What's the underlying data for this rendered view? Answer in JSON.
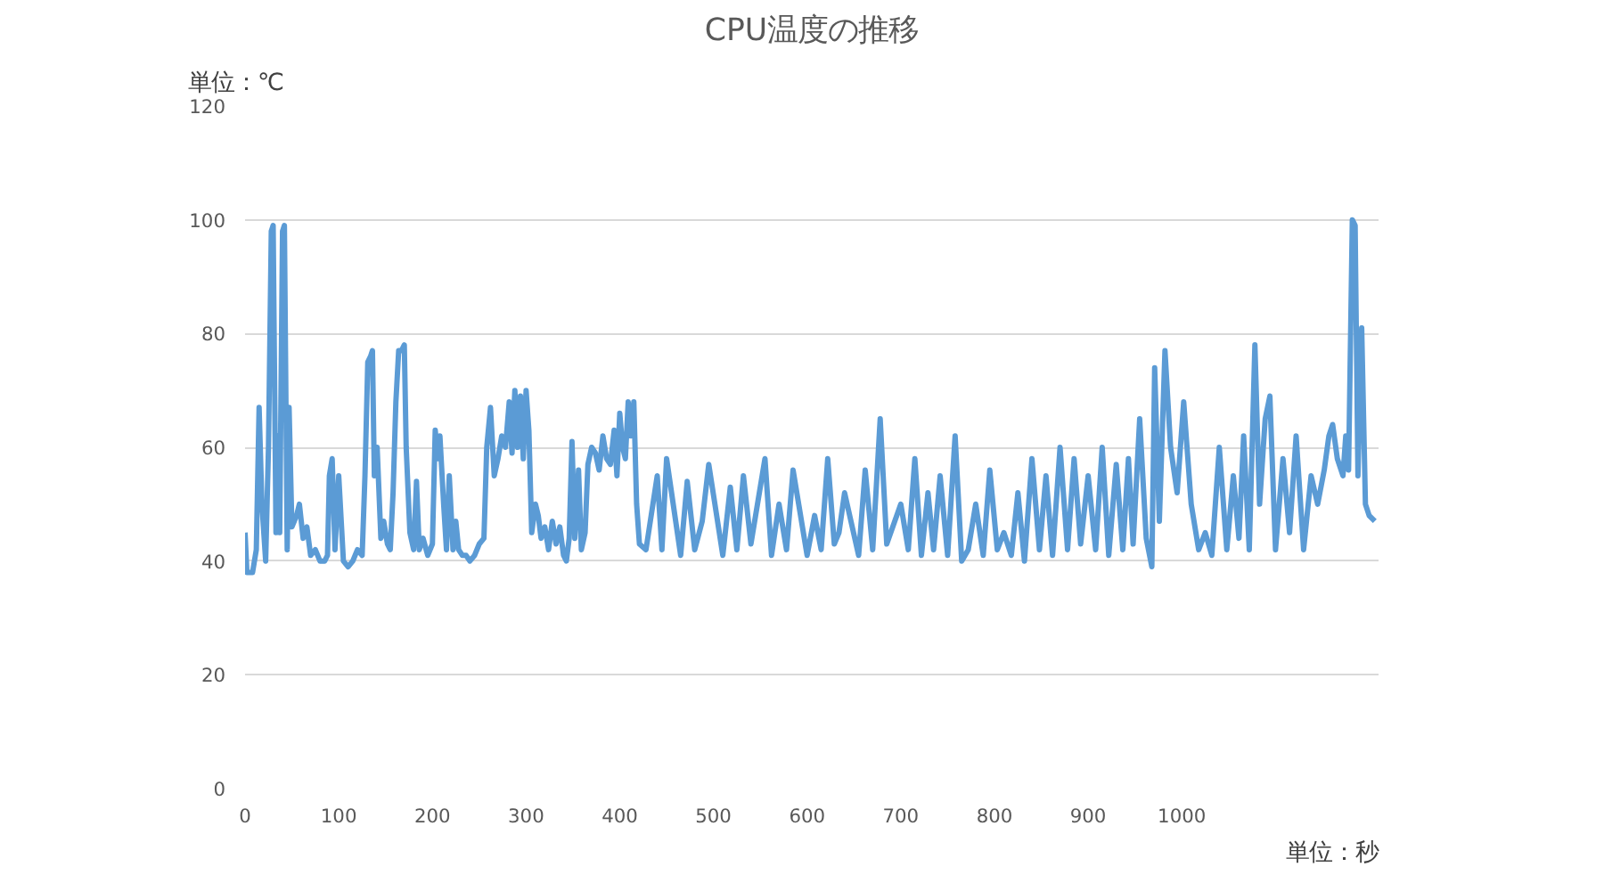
{
  "chart_data": {
    "type": "line",
    "title": "CPU温度の推移",
    "xlabel": "単位：秒",
    "ylabel": "単位：℃",
    "xlim": [
      0,
      1210
    ],
    "xticks": [
      0,
      100,
      200,
      300,
      400,
      500,
      600,
      700,
      800,
      900,
      1000
    ],
    "ylim": [
      0,
      120
    ],
    "yticks": [
      0,
      20,
      40,
      60,
      80,
      100,
      120
    ],
    "grid": "y",
    "line_style": "solid",
    "marker": "none",
    "series": [
      {
        "color": "#5b9bd5",
        "x": [
          0,
          2,
          8,
          12,
          15,
          18,
          22,
          25,
          28,
          30,
          33,
          35,
          37,
          40,
          42,
          45,
          47,
          50,
          55,
          58,
          62,
          66,
          70,
          75,
          80,
          85,
          88,
          90,
          93,
          96,
          100,
          105,
          110,
          115,
          120,
          125,
          128,
          131,
          134,
          136,
          138,
          141,
          145,
          148,
          152,
          155,
          158,
          161,
          164,
          167,
          170,
          172,
          176,
          180,
          183,
          186,
          190,
          195,
          200,
          203,
          206,
          208,
          212,
          215,
          218,
          222,
          225,
          228,
          232,
          236,
          240,
          245,
          250,
          255,
          258,
          262,
          266,
          270,
          274,
          278,
          282,
          285,
          288,
          291,
          294,
          297,
          300,
          303,
          306,
          310,
          313,
          316,
          320,
          324,
          328,
          332,
          336,
          340,
          343,
          346,
          349,
          352,
          356,
          359,
          363,
          366,
          370,
          374,
          378,
          382,
          386,
          390,
          394,
          397,
          400,
          403,
          406,
          409,
          412,
          415,
          418,
          421,
          428,
          440,
          445,
          450,
          465,
          472,
          480,
          488,
          495,
          510,
          518,
          525,
          532,
          540,
          555,
          562,
          570,
          578,
          585,
          600,
          608,
          615,
          622,
          629,
          634,
          640,
          655,
          662,
          670,
          678,
          685,
          700,
          708,
          715,
          722,
          729,
          735,
          742,
          750,
          758,
          765,
          772,
          780,
          788,
          795,
          803,
          810,
          818,
          825,
          832,
          840,
          848,
          855,
          862,
          870,
          878,
          885,
          892,
          900,
          908,
          915,
          922,
          930,
          937,
          943,
          948,
          955,
          962,
          968,
          971,
          976,
          982,
          988,
          995,
          1002,
          1010,
          1018,
          1025,
          1032,
          1040,
          1048,
          1055,
          1061,
          1066,
          1072,
          1078,
          1083,
          1089,
          1094,
          1100,
          1108,
          1115,
          1122,
          1130,
          1138,
          1145,
          1152,
          1157,
          1161,
          1166,
          1172,
          1175,
          1178,
          1182,
          1185,
          1188,
          1192,
          1196,
          1200,
          1206
        ],
        "values": [
          45,
          38,
          38,
          42,
          67,
          50,
          40,
          60,
          98,
          99,
          45,
          62,
          45,
          98,
          99,
          42,
          67,
          46,
          48,
          50,
          44,
          46,
          41,
          42,
          40,
          40,
          41,
          55,
          58,
          42,
          55,
          40,
          39,
          40,
          42,
          41,
          55,
          75,
          76,
          77,
          55,
          60,
          44,
          47,
          43,
          42,
          52,
          68,
          77,
          77,
          78,
          60,
          45,
          42,
          54,
          42,
          44,
          41,
          43,
          63,
          58,
          62,
          50,
          42,
          55,
          42,
          47,
          42,
          41,
          41,
          40,
          41,
          43,
          44,
          60,
          67,
          55,
          58,
          62,
          60,
          68,
          59,
          70,
          60,
          69,
          58,
          70,
          63,
          45,
          50,
          48,
          44,
          46,
          42,
          47,
          43,
          46,
          41,
          40,
          44,
          61,
          44,
          56,
          42,
          45,
          57,
          60,
          59,
          56,
          62,
          58,
          57,
          63,
          55,
          66,
          60,
          58,
          68,
          62,
          68,
          50,
          43,
          42,
          55,
          42,
          58,
          41,
          54,
          42,
          47,
          57,
          41,
          53,
          42,
          55,
          43,
          58,
          41,
          50,
          42,
          56,
          41,
          48,
          42,
          58,
          43,
          45,
          52,
          41,
          56,
          42,
          65,
          43,
          50,
          42,
          58,
          41,
          52,
          42,
          55,
          41,
          62,
          40,
          42,
          50,
          41,
          56,
          42,
          45,
          41,
          52,
          40,
          58,
          42,
          55,
          41,
          60,
          42,
          58,
          43,
          55,
          42,
          60,
          41,
          57,
          42,
          58,
          43,
          65,
          44,
          39,
          74,
          47,
          77,
          60,
          52,
          68,
          50,
          42,
          45,
          41,
          60,
          42,
          55,
          44,
          62,
          42,
          78,
          50,
          65,
          69,
          42,
          58,
          45,
          62,
          42,
          55,
          50,
          56,
          62,
          64,
          58,
          55,
          62,
          56,
          100,
          99,
          55,
          81,
          50,
          48,
          47
        ]
      }
    ]
  }
}
